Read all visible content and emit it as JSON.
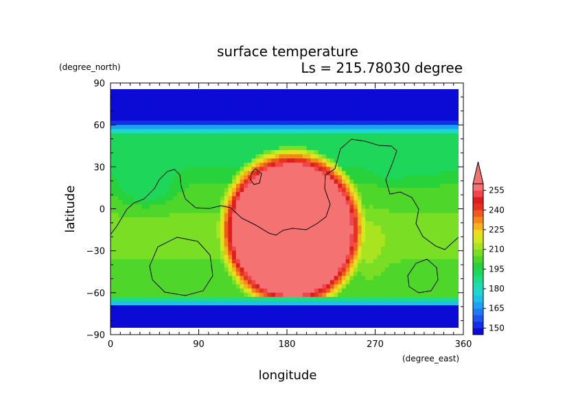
{
  "chart_data": {
    "type": "heatmap",
    "title": "surface temperature",
    "subtitle": "Ls = 215.78030 degree",
    "xlabel": "longitude",
    "ylabel": "latitude",
    "x_units": "(degree_east)",
    "y_units": "(degree_north)",
    "xlim": [
      0,
      360
    ],
    "ylim": [
      -90,
      90
    ],
    "x_ticks": [
      0,
      90,
      180,
      270,
      360
    ],
    "y_ticks": [
      -90,
      -60,
      -30,
      0,
      30,
      60,
      90
    ],
    "x_tick_labels": [
      "0",
      "90",
      "180",
      "270",
      "360"
    ],
    "y_tick_labels": [
      "−90",
      "−60",
      "−30",
      "0",
      "30",
      "60",
      "90"
    ],
    "colorbar": {
      "levels": [
        145,
        150,
        155,
        160,
        165,
        170,
        175,
        180,
        185,
        190,
        195,
        200,
        205,
        210,
        215,
        220,
        225,
        230,
        235,
        240,
        245,
        250,
        255,
        260
      ],
      "colors": [
        "#0b0bd5",
        "#1430e6",
        "#1e55f0",
        "#1f7af5",
        "#1ea0f3",
        "#1ec0e8",
        "#1ed6d2",
        "#1edcb0",
        "#1edb85",
        "#1ed65a",
        "#28d23a",
        "#4fd62a",
        "#7ade24",
        "#a8e420",
        "#d2e81e",
        "#f0dc1e",
        "#f5b41e",
        "#f5871e",
        "#f05a1e",
        "#e6321e",
        "#dc1e1e",
        "#f0464e",
        "#f57272"
      ],
      "tick_labels": [
        "150",
        "165",
        "180",
        "195",
        "210",
        "225",
        "240",
        "255"
      ],
      "extend": "both"
    },
    "field_description": {
      "polar_caps_K": 148,
      "warm_region_peak_K": 262,
      "warm_region_center_lon_deg": 185,
      "warm_region_center_lat_deg": -15
    }
  }
}
